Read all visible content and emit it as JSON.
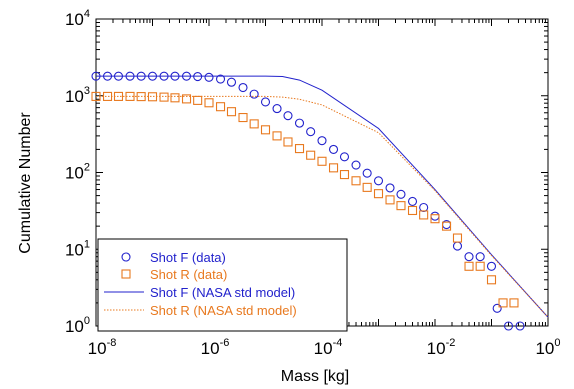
{
  "chart_data": {
    "type": "scatter",
    "title": "",
    "xlabel": "Mass [kg]",
    "ylabel": "Cumulative Number",
    "xscale": "log",
    "yscale": "log",
    "xlim": [
      1e-08,
      1
    ],
    "ylim": [
      1,
      10000
    ],
    "x_ticks": [
      {
        "base": "10",
        "exp": "-8"
      },
      {
        "base": "10",
        "exp": "-6"
      },
      {
        "base": "10",
        "exp": "-4"
      },
      {
        "base": "10",
        "exp": "-2"
      },
      {
        "base": "10",
        "exp": ""
      }
    ],
    "x_ticks_last": "10",
    "x_tick_last_plain": "10",
    "y_ticks": [
      {
        "base": "10",
        "exp": "0"
      },
      {
        "base": "10",
        "exp": "1"
      },
      {
        "base": "10",
        "exp": "2"
      },
      {
        "base": "10",
        "exp": "3"
      },
      {
        "base": "10",
        "exp": "4"
      }
    ],
    "grid": false,
    "legend_position": "bottom-left",
    "colors": {
      "blue": "#2222cc",
      "orange": "#e8791f"
    },
    "series": [
      {
        "name": "Shot F (data)",
        "style": "circle-markers",
        "color": "#2222cc",
        "points": [
          [
            1e-08,
            1800
          ],
          [
            1.6e-08,
            1800
          ],
          [
            2.5e-08,
            1800
          ],
          [
            4e-08,
            1800
          ],
          [
            6.3e-08,
            1800
          ],
          [
            1e-07,
            1800
          ],
          [
            1.6e-07,
            1800
          ],
          [
            2.5e-07,
            1800
          ],
          [
            4e-07,
            1800
          ],
          [
            6.3e-07,
            1780
          ],
          [
            1e-06,
            1740
          ],
          [
            1.6e-06,
            1650
          ],
          [
            2.5e-06,
            1500
          ],
          [
            4e-06,
            1280
          ],
          [
            6.3e-06,
            1050
          ],
          [
            1e-05,
            830
          ],
          [
            1.6e-05,
            680
          ],
          [
            2.5e-05,
            550
          ],
          [
            4e-05,
            440
          ],
          [
            6.3e-05,
            340
          ],
          [
            0.0001,
            260
          ],
          [
            0.00016,
            200
          ],
          [
            0.00025,
            160
          ],
          [
            0.0004,
            125
          ],
          [
            0.00063,
            98
          ],
          [
            0.001,
            78
          ],
          [
            0.0016,
            63
          ],
          [
            0.0025,
            52
          ],
          [
            0.004,
            42
          ],
          [
            0.0063,
            35
          ],
          [
            0.01,
            27
          ],
          [
            0.016,
            21
          ],
          [
            0.025,
            11
          ],
          [
            0.04,
            8
          ],
          [
            0.063,
            8
          ],
          [
            0.1,
            6
          ],
          [
            0.126,
            1.7
          ],
          [
            0.2,
            1.0
          ],
          [
            0.32,
            1.0
          ]
        ]
      },
      {
        "name": "Shot R (data)",
        "style": "square-markers",
        "color": "#e8791f",
        "points": [
          [
            1e-08,
            980
          ],
          [
            1.6e-08,
            980
          ],
          [
            2.5e-08,
            980
          ],
          [
            4e-08,
            980
          ],
          [
            6.3e-08,
            975
          ],
          [
            1e-07,
            970
          ],
          [
            1.6e-07,
            960
          ],
          [
            2.5e-07,
            940
          ],
          [
            4e-07,
            910
          ],
          [
            6.3e-07,
            870
          ],
          [
            1e-06,
            810
          ],
          [
            1.6e-06,
            720
          ],
          [
            2.5e-06,
            620
          ],
          [
            4e-06,
            520
          ],
          [
            6.3e-06,
            430
          ],
          [
            1e-05,
            360
          ],
          [
            1.6e-05,
            300
          ],
          [
            2.5e-05,
            250
          ],
          [
            4e-05,
            205
          ],
          [
            6.3e-05,
            168
          ],
          [
            0.0001,
            140
          ],
          [
            0.00016,
            115
          ],
          [
            0.00025,
            94
          ],
          [
            0.0004,
            78
          ],
          [
            0.00063,
            64
          ],
          [
            0.001,
            53
          ],
          [
            0.0016,
            44
          ],
          [
            0.0025,
            37
          ],
          [
            0.004,
            32
          ],
          [
            0.0063,
            28
          ],
          [
            0.01,
            25
          ],
          [
            0.016,
            20
          ],
          [
            0.025,
            14
          ],
          [
            0.04,
            6
          ],
          [
            0.063,
            6
          ],
          [
            0.1,
            4
          ],
          [
            0.16,
            2
          ],
          [
            0.25,
            2
          ]
        ]
      },
      {
        "name": "Shot F (NASA std model)",
        "style": "solid-line",
        "color": "#2222cc",
        "points": [
          [
            1e-08,
            1800
          ],
          [
            1e-07,
            1800
          ],
          [
            1e-06,
            1800
          ],
          [
            1e-05,
            1800
          ],
          [
            2e-05,
            1780
          ],
          [
            4e-05,
            1600
          ],
          [
            0.0001,
            1180
          ],
          [
            0.001,
            375
          ],
          [
            0.01,
            60
          ],
          [
            0.1,
            8.5
          ],
          [
            1.0,
            1.3
          ]
        ]
      },
      {
        "name": "Shot R (NASA std model)",
        "style": "dotted-line",
        "color": "#e8791f",
        "points": [
          [
            1e-08,
            980
          ],
          [
            1e-07,
            980
          ],
          [
            1e-06,
            980
          ],
          [
            1e-05,
            980
          ],
          [
            2e-05,
            960
          ],
          [
            4e-05,
            900
          ],
          [
            0.0001,
            760
          ],
          [
            0.001,
            330
          ],
          [
            0.01,
            58
          ],
          [
            0.1,
            8.3
          ],
          [
            1.0,
            1.3
          ]
        ]
      }
    ]
  }
}
